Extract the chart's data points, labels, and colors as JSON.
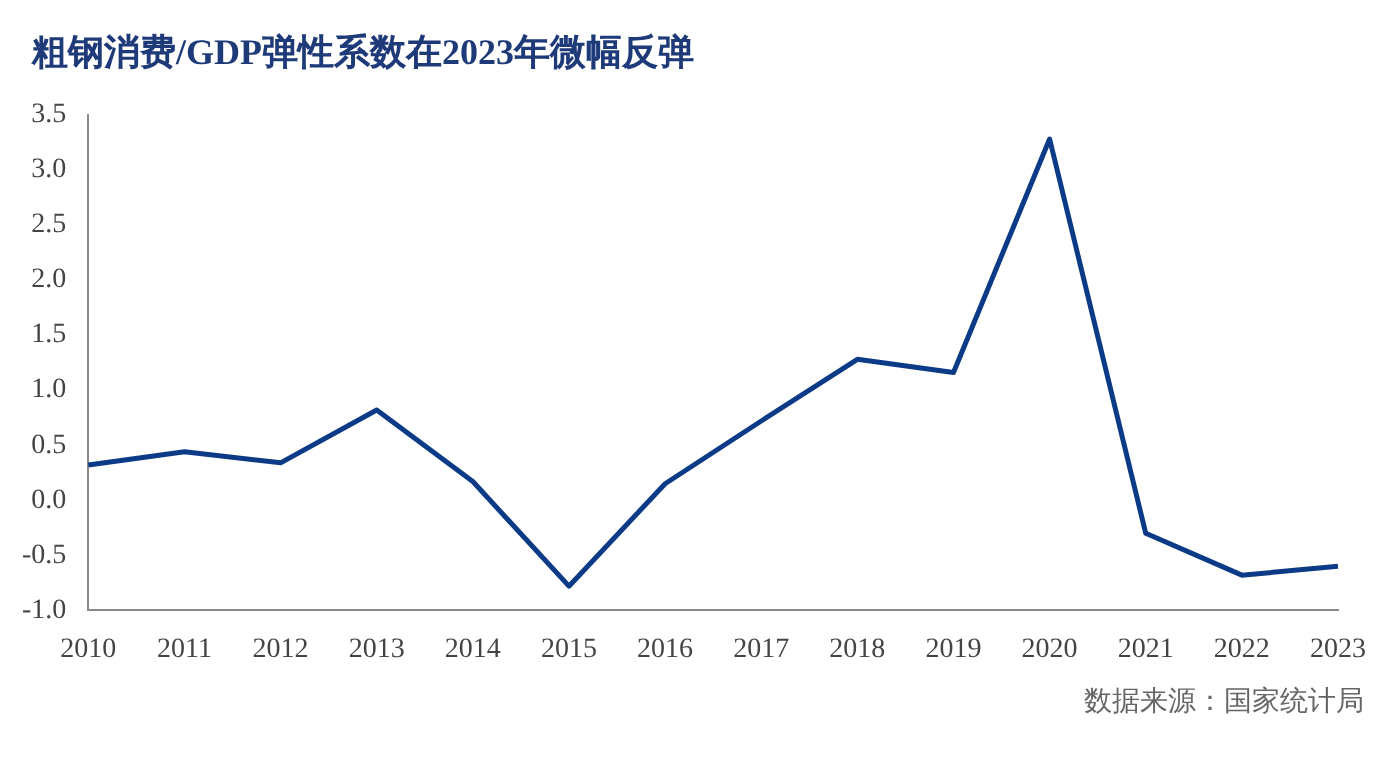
{
  "chart_data": {
    "type": "line",
    "title": "粗钢消费/GDP弹性系数在2023年微幅反弹",
    "categories": [
      "2010",
      "2011",
      "2012",
      "2013",
      "2014",
      "2015",
      "2016",
      "2017",
      "2018",
      "2019",
      "2020",
      "2021",
      "2022",
      "2023"
    ],
    "series": [
      {
        "color": "#0b3a87",
        "values": [
          0.32,
          0.44,
          0.34,
          0.82,
          0.17,
          -0.78,
          0.15,
          0.72,
          1.28,
          1.16,
          3.28,
          -0.3,
          -0.68,
          -0.6
        ]
      }
    ],
    "ylim": [
      -1.0,
      3.5
    ],
    "yticks": [
      {
        "value": -1,
        "label": "-1.0"
      },
      {
        "value": -0.5,
        "label": "-0.5"
      },
      {
        "value": 0,
        "label": "0.0"
      },
      {
        "value": 0.5,
        "label": "0.5"
      },
      {
        "value": 1,
        "label": "1.0"
      },
      {
        "value": 1.5,
        "label": "1.5"
      },
      {
        "value": 2,
        "label": "2.0"
      },
      {
        "value": 2.5,
        "label": "2.5"
      },
      {
        "value": 3,
        "label": "3.0"
      },
      {
        "value": 3.5,
        "label": "3.5"
      }
    ],
    "grid": false,
    "legend": false,
    "marker": "none",
    "line_style": "solid",
    "annotations": [
      "数据来源：国家统计局"
    ]
  }
}
